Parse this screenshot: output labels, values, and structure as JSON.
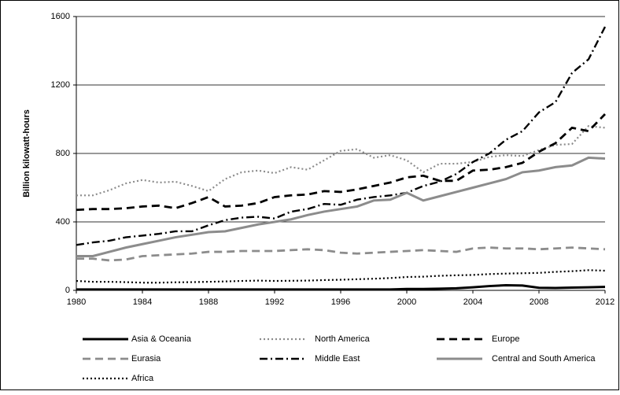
{
  "chart_data": {
    "type": "line",
    "ylabel": "Billion kilowatt-hours",
    "x": [
      1980,
      1981,
      1982,
      1983,
      1984,
      1985,
      1986,
      1987,
      1988,
      1989,
      1990,
      1991,
      1992,
      1993,
      1994,
      1995,
      1996,
      1997,
      1998,
      1999,
      2000,
      2001,
      2002,
      2003,
      2004,
      2005,
      2006,
      2007,
      2008,
      2009,
      2010,
      2011,
      2012
    ],
    "xlim": [
      1980,
      2012
    ],
    "xticks": [
      1980,
      1984,
      1988,
      1992,
      1996,
      2000,
      2004,
      2008,
      2012
    ],
    "ylim": [
      0,
      1600
    ],
    "yticks": [
      0,
      400,
      800,
      1200,
      1600
    ],
    "grid": true,
    "legend": "bottom",
    "series": [
      {
        "name": "Asia & Oceania",
        "color": "#000000",
        "style": "solid",
        "values": [
          5,
          5,
          5,
          5,
          5,
          5,
          5,
          5,
          5,
          5,
          5,
          5,
          5,
          5,
          5,
          5,
          5,
          5,
          5,
          5,
          8,
          8,
          10,
          12,
          18,
          25,
          30,
          28,
          15,
          14,
          16,
          18,
          20
        ]
      },
      {
        "name": "North America",
        "color": "#8c8c8c",
        "style": "dotted",
        "values": [
          555,
          555,
          585,
          625,
          645,
          630,
          635,
          610,
          580,
          650,
          690,
          700,
          685,
          720,
          705,
          760,
          815,
          825,
          775,
          790,
          760,
          690,
          740,
          740,
          750,
          780,
          790,
          785,
          820,
          850,
          855,
          960,
          950
        ]
      },
      {
        "name": "Europe",
        "color": "#000000",
        "style": "dashed",
        "values": [
          470,
          475,
          475,
          480,
          490,
          495,
          480,
          510,
          545,
          490,
          495,
          510,
          545,
          555,
          560,
          580,
          575,
          590,
          610,
          630,
          660,
          670,
          640,
          640,
          700,
          705,
          720,
          745,
          810,
          860,
          950,
          930,
          1030
        ]
      },
      {
        "name": "Eurasia",
        "color": "#8c8c8c",
        "style": "dashed",
        "values": [
          185,
          185,
          175,
          180,
          200,
          205,
          210,
          215,
          225,
          225,
          230,
          230,
          230,
          235,
          240,
          235,
          220,
          215,
          220,
          225,
          230,
          235,
          230,
          225,
          245,
          250,
          245,
          245,
          240,
          245,
          250,
          245,
          240
        ]
      },
      {
        "name": "Middle East",
        "color": "#000000",
        "style": "dashdot",
        "values": [
          265,
          280,
          290,
          310,
          320,
          330,
          345,
          345,
          380,
          410,
          425,
          430,
          420,
          460,
          475,
          505,
          500,
          530,
          545,
          555,
          570,
          610,
          635,
          680,
          750,
          800,
          880,
          930,
          1040,
          1100,
          1270,
          1350,
          1540
        ]
      },
      {
        "name": "Central and South America",
        "color": "#8c8c8c",
        "style": "solid",
        "values": [
          200,
          200,
          225,
          250,
          270,
          290,
          310,
          325,
          340,
          345,
          365,
          385,
          400,
          415,
          440,
          460,
          475,
          490,
          525,
          530,
          570,
          525,
          550,
          575,
          600,
          625,
          650,
          690,
          700,
          720,
          730,
          775,
          770
        ]
      },
      {
        "name": "Africa",
        "color": "#000000",
        "style": "dotted",
        "values": [
          55,
          50,
          50,
          48,
          45,
          45,
          47,
          48,
          50,
          52,
          55,
          57,
          55,
          56,
          57,
          60,
          62,
          65,
          68,
          72,
          78,
          80,
          85,
          88,
          90,
          95,
          98,
          100,
          102,
          108,
          112,
          118,
          115
        ]
      }
    ]
  }
}
